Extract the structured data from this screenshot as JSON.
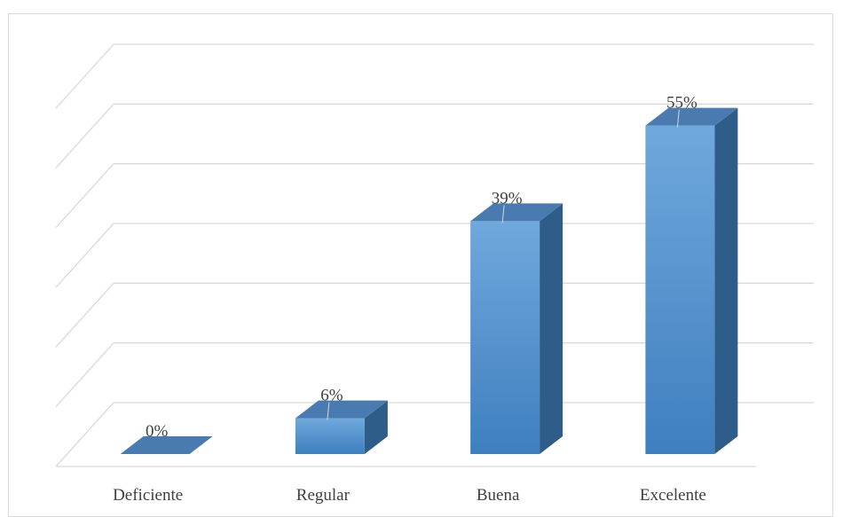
{
  "chart_data": {
    "type": "bar",
    "style": "3d-column",
    "categories": [
      "Deficiente",
      "Regular",
      "Buena",
      "Excelente"
    ],
    "values": [
      0,
      6,
      39,
      55
    ],
    "data_labels": [
      "0%",
      "6%",
      "39%",
      "55%"
    ],
    "ylim": [
      0,
      60
    ],
    "grid": true,
    "legend": "none",
    "colors": {
      "front": "#5b9bd5",
      "front_light": "#6fa8dc",
      "front_dark": "#3f7fbf",
      "side": "#2e5d8a",
      "top": "#4a7bb0",
      "grid": "#d9d9d9",
      "text": "#404040"
    }
  }
}
